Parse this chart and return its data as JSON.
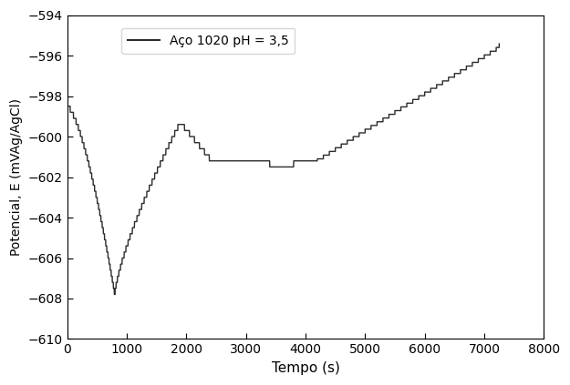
{
  "xlabel": "Tempo (s)",
  "ylabel": "Potencial, E (mVAg/AgCl)",
  "legend_label": "Aço 1020 pH = 3,5",
  "xlim": [
    0,
    8000
  ],
  "ylim": [
    -610,
    -594
  ],
  "xticks": [
    0,
    1000,
    2000,
    3000,
    4000,
    5000,
    6000,
    7000,
    8000
  ],
  "yticks": [
    -610,
    -608,
    -606,
    -604,
    -602,
    -600,
    -598,
    -596,
    -594
  ],
  "line_color": "#2b2b2b",
  "line_width": 1.0,
  "bg_color": "#ffffff"
}
